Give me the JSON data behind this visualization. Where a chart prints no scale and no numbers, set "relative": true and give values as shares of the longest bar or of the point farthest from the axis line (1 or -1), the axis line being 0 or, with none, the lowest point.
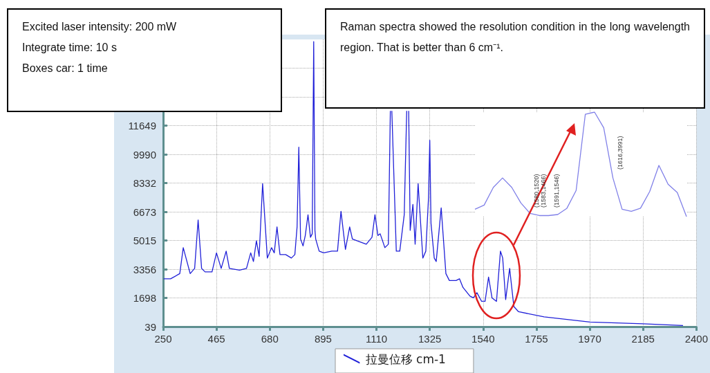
{
  "chart_data": [
    {
      "type": "line",
      "series": [
        {
          "name": "拉曼位移 cm-1",
          "color": "#2020d8",
          "x": [
            252,
            280,
            317,
            331,
            359,
            377,
            391,
            405,
            419,
            447,
            465,
            484,
            504,
            517,
            558,
            586,
            603,
            614,
            626,
            637,
            651,
            670,
            687,
            698,
            709,
            721,
            744,
            767,
            781,
            790,
            797,
            804,
            814,
            823,
            834,
            844,
            851,
            857,
            862,
            865,
            879,
            897,
            930,
            953,
            967,
            985,
            1002,
            1013,
            1050,
            1069,
            1092,
            1104,
            1116,
            1125,
            1144,
            1158,
            1166,
            1169,
            1172,
            1190,
            1204,
            1222,
            1232,
            1236,
            1240,
            1246,
            1257,
            1266,
            1278,
            1297,
            1309,
            1320,
            1325,
            1330,
            1343,
            1351,
            1371,
            1390,
            1404,
            1431,
            1445,
            1459,
            1487,
            1501,
            1515,
            1534,
            1548,
            1562,
            1576,
            1594,
            1610,
            1619,
            1631,
            1647,
            1664,
            1683,
            1786,
            1971,
            2184,
            2346
          ],
          "values": [
            2800,
            2800,
            3100,
            4600,
            3100,
            3400,
            6200,
            3400,
            3200,
            3200,
            4300,
            3400,
            4400,
            3400,
            3300,
            3400,
            4300,
            3800,
            5000,
            4100,
            8300,
            4000,
            4600,
            4300,
            5800,
            4200,
            4200,
            4000,
            4200,
            5800,
            10400,
            5100,
            4700,
            5300,
            6500,
            5200,
            5400,
            16500,
            5600,
            5100,
            4400,
            4300,
            4400,
            4400,
            6700,
            4500,
            5800,
            5100,
            4900,
            4800,
            5200,
            6500,
            5300,
            5400,
            4600,
            4800,
            12500,
            null,
            12500,
            4400,
            4400,
            6500,
            12500,
            null,
            12500,
            5600,
            7100,
            4800,
            8300,
            4000,
            4400,
            7500,
            10800,
            6000,
            4000,
            3800,
            6900,
            3100,
            2700,
            2700,
            2800,
            2300,
            1800,
            1700,
            2000,
            1500,
            1500,
            2900,
            1700,
            1500,
            4400,
            4000,
            1600,
            3400,
            1200,
            900,
            600,
            300,
            200,
            100
          ]
        }
      ],
      "xlim": [
        250,
        2400
      ],
      "xticks": [
        250,
        465,
        680,
        895,
        1110,
        1325,
        1540,
        1755,
        1970,
        2185,
        2400
      ],
      "ylim": [
        39,
        16624
      ],
      "yticks": [
        39,
        1698,
        3356,
        5015,
        6673,
        8332,
        9990,
        11649,
        {
          "value": 13307,
          "label": null
        },
        {
          "value": 14966,
          "label": null
        }
      ],
      "grid": true,
      "legend": "bottom",
      "marker": "none",
      "line_style": "solid",
      "annotations": [
        "Excited laser intensity: 200 mW",
        "Integrate time: 10 s",
        "Boxes car: 1 time",
        "Raman spectra showed the resolution condition in the long wavelength region. That is better than 6 cm⁻¹."
      ]
    },
    {
      "type": "line",
      "relative": true,
      "categories": [
        null,
        null,
        null,
        null,
        null,
        null,
        null,
        null,
        null,
        null,
        null,
        null,
        null,
        null,
        null,
        null,
        null,
        null,
        null,
        null,
        null,
        null,
        null,
        null
      ],
      "series": [
        {
          "color": "#8080e8",
          "values": [
            0.07,
            0.11,
            0.28,
            0.37,
            0.28,
            0.13,
            0.03,
            0.01,
            0.01,
            0.02,
            0.08,
            0.25,
            0.98,
            1,
            0.85,
            0.37,
            0.07,
            0.05,
            0.08,
            0.24,
            0.49,
            0.31,
            0.23,
            0
          ]
        }
      ],
      "marker": "none",
      "tick_labels": false,
      "annotations": [
        "(1580,1520)",
        "(1583,1466)",
        "(1591,1546)",
        "(1616,3991)"
      ]
    }
  ]
}
